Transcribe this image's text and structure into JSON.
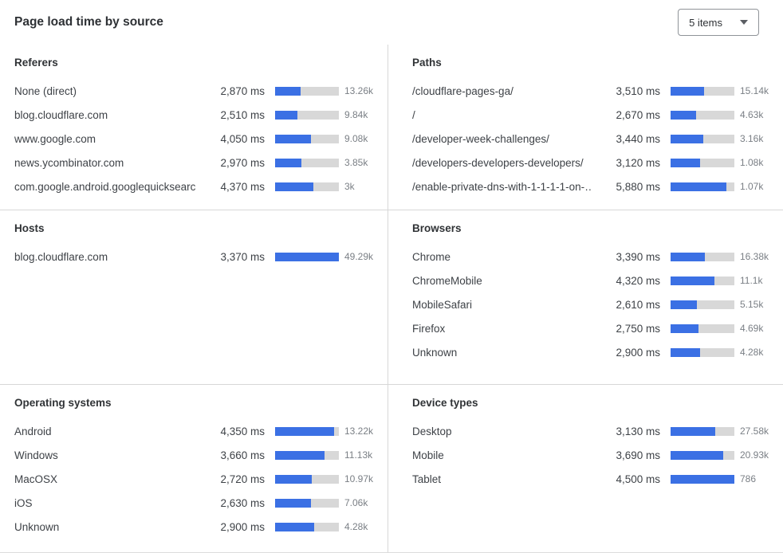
{
  "header": {
    "title": "Page load time by source",
    "items_dropdown": {
      "value": "5 items"
    }
  },
  "colors": {
    "bar_fill": "#3b70e4",
    "bar_track": "#d8d8d8",
    "divider": "#d7d7d7"
  },
  "chart_data": [
    {
      "type": "bar",
      "title": "Referers",
      "orientation": "horizontal",
      "categories": [
        "None (direct)",
        "blog.cloudflare.com",
        "www.google.com",
        "news.ycombinator.com",
        "com.google.android.googlequicksearc…"
      ],
      "ms_values": [
        2870,
        2510,
        4050,
        2970,
        4370
      ],
      "ms_labels": [
        "2,870 ms",
        "2,510 ms",
        "4,050 ms",
        "2,970 ms",
        "4,370 ms"
      ],
      "counts": [
        "13.26k",
        "9.84k",
        "9.08k",
        "3.85k",
        "3k"
      ],
      "bar_scale_max_ms": 7250
    },
    {
      "type": "bar",
      "title": "Paths",
      "orientation": "horizontal",
      "categories": [
        "/cloudflare-pages-ga/",
        "/",
        "/developer-week-challenges/",
        "/developers-developers-developers/",
        "/enable-private-dns-with-1-1-1-1-on-…"
      ],
      "ms_values": [
        3510,
        2670,
        3440,
        3120,
        5880
      ],
      "ms_labels": [
        "3,510 ms",
        "2,670 ms",
        "3,440 ms",
        "3,120 ms",
        "5,880 ms"
      ],
      "counts": [
        "15.14k",
        "4.63k",
        "3.16k",
        "1.08k",
        "1.07k"
      ],
      "bar_scale_max_ms": 6760
    },
    {
      "type": "bar",
      "title": "Hosts",
      "orientation": "horizontal",
      "categories": [
        "blog.cloudflare.com"
      ],
      "ms_values": [
        3370
      ],
      "ms_labels": [
        "3,370 ms"
      ],
      "counts": [
        "49.29k"
      ],
      "bar_scale_max_ms": 3370
    },
    {
      "type": "bar",
      "title": "Browsers",
      "orientation": "horizontal",
      "categories": [
        "Chrome",
        "ChromeMobile",
        "MobileSafari",
        "Firefox",
        "Unknown"
      ],
      "ms_values": [
        3390,
        4320,
        2610,
        2750,
        2900
      ],
      "ms_labels": [
        "3,390 ms",
        "4,320 ms",
        "2,610 ms",
        "2,750 ms",
        "2,900 ms"
      ],
      "counts": [
        "16.38k",
        "11.1k",
        "5.15k",
        "4.69k",
        "4.28k"
      ],
      "bar_scale_max_ms": 6250
    },
    {
      "type": "bar",
      "title": "Operating systems",
      "orientation": "horizontal",
      "categories": [
        "Android",
        "Windows",
        "MacOSX",
        "iOS",
        "Unknown"
      ],
      "ms_values": [
        4350,
        3660,
        2720,
        2630,
        2900
      ],
      "ms_labels": [
        "4,350 ms",
        "3,660 ms",
        "2,720 ms",
        "2,630 ms",
        "2,900 ms"
      ],
      "counts": [
        "13.22k",
        "11.13k",
        "10.97k",
        "7.06k",
        "4.28k"
      ],
      "bar_scale_max_ms": 4700
    },
    {
      "type": "bar",
      "title": "Device types",
      "orientation": "horizontal",
      "categories": [
        "Desktop",
        "Mobile",
        "Tablet"
      ],
      "ms_values": [
        3130,
        3690,
        4500
      ],
      "ms_labels": [
        "3,130 ms",
        "3,690 ms",
        "4,500 ms"
      ],
      "counts": [
        "27.58k",
        "20.93k",
        "786"
      ],
      "bar_scale_max_ms": 4500
    }
  ]
}
